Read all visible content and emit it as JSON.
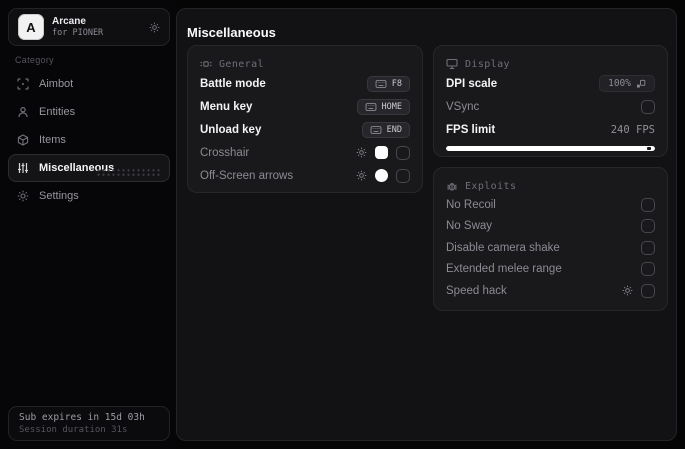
{
  "app": {
    "logo_letter": "A",
    "name": "Arcane",
    "subtitle": "for PIONER"
  },
  "sidebar": {
    "category_label": "Category",
    "items": [
      {
        "label": "Aimbot",
        "icon": "crosshair-scan-icon",
        "selected": false
      },
      {
        "label": "Entities",
        "icon": "person-icon",
        "selected": false
      },
      {
        "label": "Items",
        "icon": "cube-icon",
        "selected": false
      },
      {
        "label": "Miscellaneous",
        "icon": "sliders-icon",
        "selected": true
      },
      {
        "label": "Settings",
        "icon": "gear-icon",
        "selected": false
      }
    ],
    "footer": {
      "line1": "Sub expires in 15d 03h",
      "line2": "Session duration 31s"
    }
  },
  "main": {
    "title": "Miscellaneous",
    "general": {
      "header": "General",
      "icon": "focus-square-icon",
      "rows": [
        {
          "label": "Battle mode",
          "key": "F8"
        },
        {
          "label": "Menu key",
          "key": "HOME"
        },
        {
          "label": "Unload key",
          "key": "END"
        },
        {
          "label": "Crosshair",
          "checked": false,
          "color": "#ffffff",
          "has_settings": true
        },
        {
          "label": "Off-Screen arrows",
          "checked": false,
          "color": "#ffffff",
          "has_settings": true
        }
      ]
    },
    "display": {
      "header": "Display",
      "icon": "monitor-icon",
      "dpi": {
        "label": "DPI scale",
        "value": "100%"
      },
      "vsync": {
        "label": "VSync",
        "checked": false
      },
      "fps": {
        "label": "FPS limit",
        "value": "240 FPS",
        "slider_percent": 97
      }
    },
    "exploits": {
      "header": "Exploits",
      "icon": "bug-icon",
      "rows": [
        {
          "label": "No Recoil",
          "checked": false
        },
        {
          "label": "No Sway",
          "checked": false
        },
        {
          "label": "Disable camera shake",
          "checked": false
        },
        {
          "label": "Extended melee range",
          "checked": false
        },
        {
          "label": "Speed hack",
          "checked": false,
          "has_settings": true
        }
      ]
    }
  },
  "colors": {
    "background": "#050506",
    "panel": "#121214",
    "card": "#19191c",
    "text_primary": "#fafafa",
    "text_muted": "#8b8b93",
    "swatch": "#ffffff",
    "slider_fill": "#ffffff"
  }
}
